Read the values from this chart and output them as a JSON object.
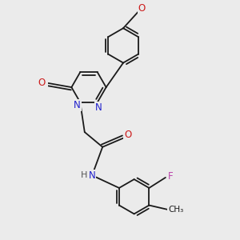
{
  "bg_color": "#ebebeb",
  "bond_color": "#1a1a1a",
  "bond_width": 1.3,
  "atom_colors": {
    "N": "#2020cc",
    "O": "#cc1a1a",
    "F": "#bb44aa",
    "H": "#555555",
    "C": "#1a1a1a"
  },
  "font_size": 8.5,
  "fig_size": [
    3.0,
    3.0
  ]
}
